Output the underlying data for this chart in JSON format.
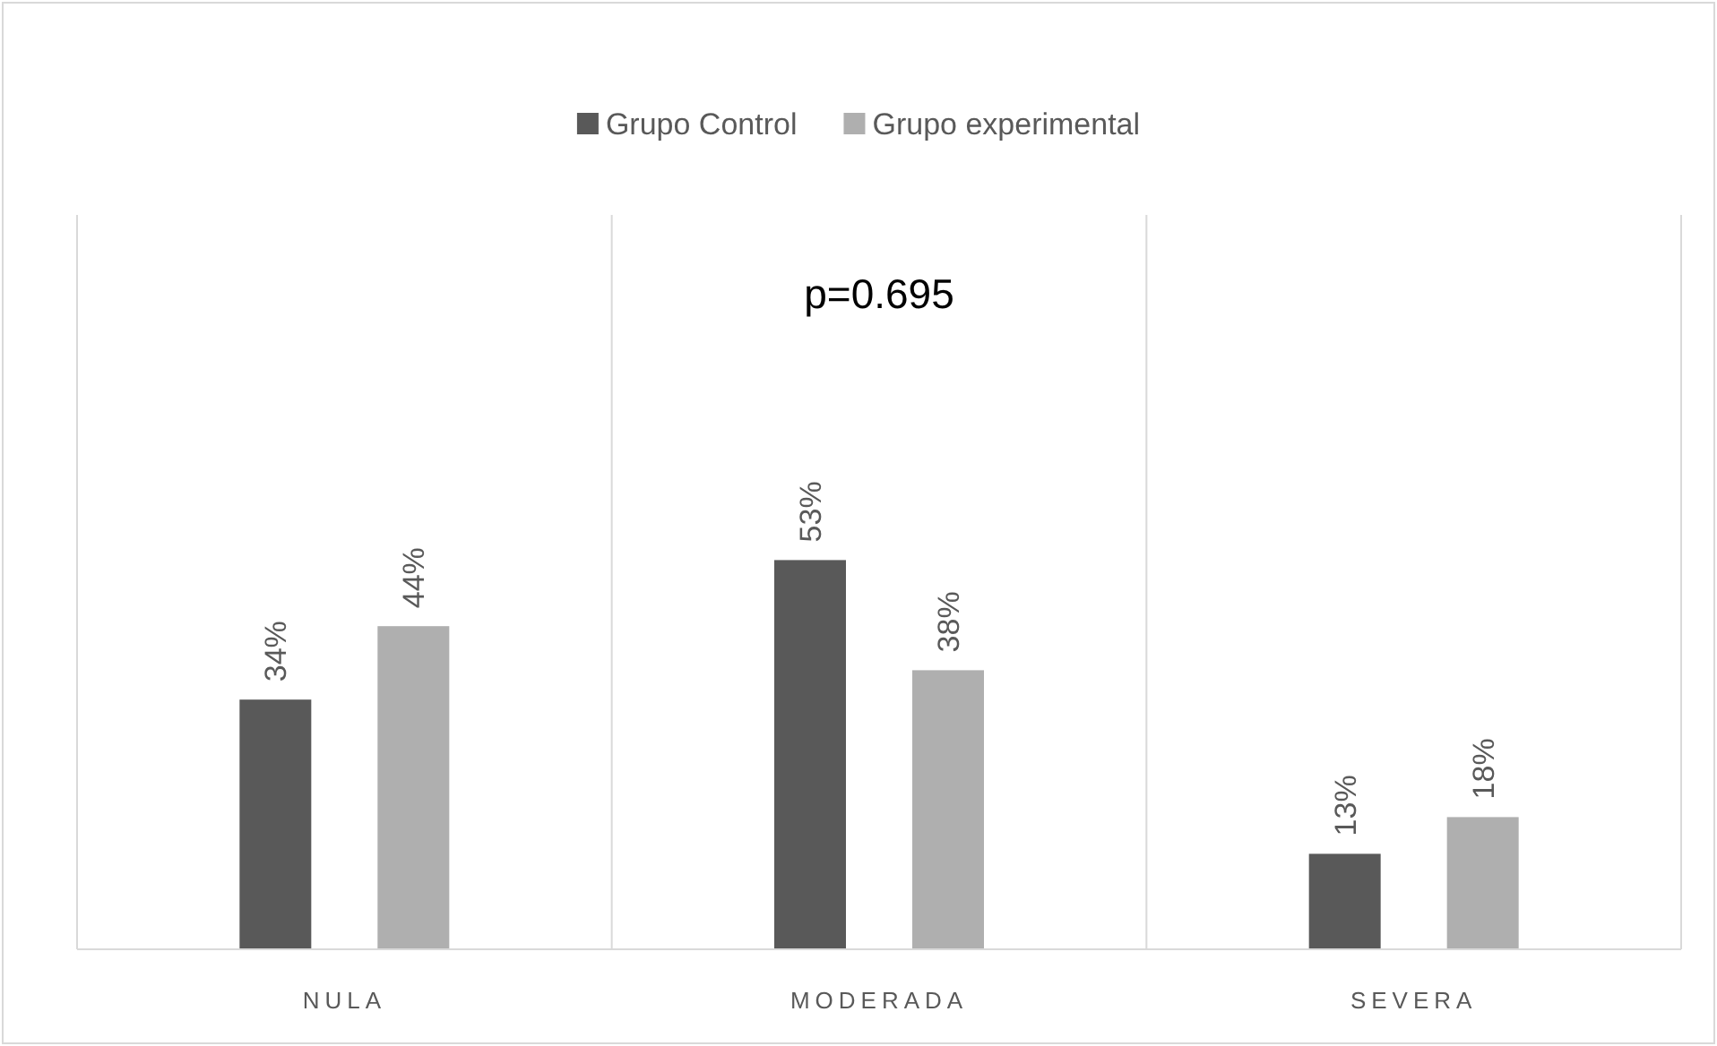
{
  "chart_data": {
    "type": "bar",
    "categories": [
      "NULA",
      "MODERADA",
      "SEVERA"
    ],
    "series": [
      {
        "name": "Grupo Control",
        "color": "#595959",
        "values": [
          34,
          53,
          13
        ],
        "value_labels": [
          "34%",
          "53%",
          "13%"
        ]
      },
      {
        "name": "Grupo experimental",
        "color": "#afafaf",
        "values": [
          44,
          38,
          18
        ],
        "value_labels": [
          "44%",
          "38%",
          "18%"
        ]
      }
    ],
    "ylim": [
      0,
      100
    ],
    "tick_labels": "x",
    "grid": "x",
    "legend": "top",
    "annotations": [
      "p=0.695"
    ]
  }
}
